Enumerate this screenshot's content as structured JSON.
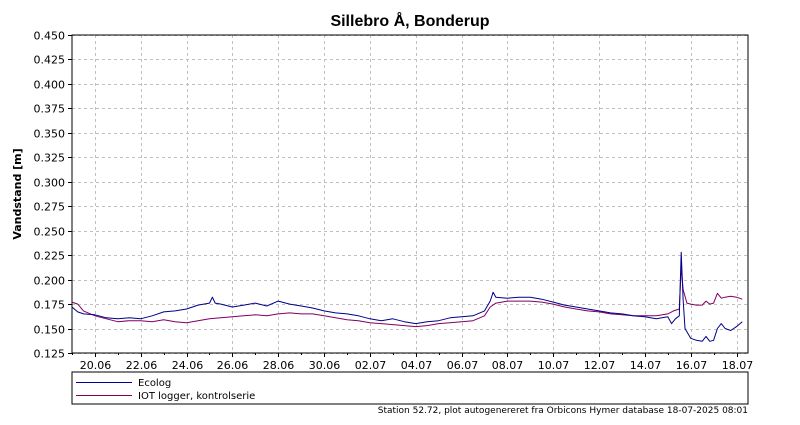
{
  "chart_data": {
    "type": "line",
    "title": "Sillebro Å, Bonderup",
    "ylabel": "Vandstand [m]",
    "xlabel": "",
    "ylim": [
      0.125,
      0.45
    ],
    "yticks": [
      "0.125",
      "0.150",
      "0.175",
      "0.200",
      "0.225",
      "0.250",
      "0.275",
      "0.300",
      "0.325",
      "0.350",
      "0.375",
      "0.400",
      "0.425",
      "0.450"
    ],
    "xlim": [
      "2025-06-19T00:00",
      "2025-07-18T12:00"
    ],
    "xticks": [
      {
        "date": "2025-06-20",
        "label": "20.06"
      },
      {
        "date": "2025-06-22",
        "label": "22.06"
      },
      {
        "date": "2025-06-24",
        "label": "24.06"
      },
      {
        "date": "2025-06-26",
        "label": "26.06"
      },
      {
        "date": "2025-06-28",
        "label": "28.06"
      },
      {
        "date": "2025-06-30",
        "label": "30.06"
      },
      {
        "date": "2025-07-02",
        "label": "02.07"
      },
      {
        "date": "2025-07-04",
        "label": "04.07"
      },
      {
        "date": "2025-07-06",
        "label": "06.07"
      },
      {
        "date": "2025-07-08",
        "label": "08.07"
      },
      {
        "date": "2025-07-10",
        "label": "10.07"
      },
      {
        "date": "2025-07-12",
        "label": "12.07"
      },
      {
        "date": "2025-07-14",
        "label": "14.07"
      },
      {
        "date": "2025-07-16",
        "label": "16.07"
      },
      {
        "date": "2025-07-18",
        "label": "18.07"
      }
    ],
    "grid": true,
    "legend_position": "bottom-left",
    "series": [
      {
        "name": "Ecolog",
        "color": "#00008B",
        "points": [
          [
            "2025-06-19T00:00",
            0.172
          ],
          [
            "2025-06-19T06:00",
            0.167
          ],
          [
            "2025-06-19T12:00",
            0.165
          ],
          [
            "2025-06-20T00:00",
            0.164
          ],
          [
            "2025-06-20T12:00",
            0.161
          ],
          [
            "2025-06-21T00:00",
            0.16
          ],
          [
            "2025-06-21T12:00",
            0.161
          ],
          [
            "2025-06-22T00:00",
            0.16
          ],
          [
            "2025-06-22T12:00",
            0.163
          ],
          [
            "2025-06-23T00:00",
            0.167
          ],
          [
            "2025-06-23T12:00",
            0.168
          ],
          [
            "2025-06-24T00:00",
            0.17
          ],
          [
            "2025-06-24T12:00",
            0.174
          ],
          [
            "2025-06-25T00:00",
            0.176
          ],
          [
            "2025-06-25T03:00",
            0.182
          ],
          [
            "2025-06-25T06:00",
            0.176
          ],
          [
            "2025-06-25T12:00",
            0.175
          ],
          [
            "2025-06-26T00:00",
            0.172
          ],
          [
            "2025-06-26T12:00",
            0.174
          ],
          [
            "2025-06-27T00:00",
            0.176
          ],
          [
            "2025-06-27T12:00",
            0.173
          ],
          [
            "2025-06-28T00:00",
            0.178
          ],
          [
            "2025-06-28T12:00",
            0.175
          ],
          [
            "2025-06-29T00:00",
            0.173
          ],
          [
            "2025-06-29T12:00",
            0.171
          ],
          [
            "2025-06-30T00:00",
            0.168
          ],
          [
            "2025-06-30T12:00",
            0.166
          ],
          [
            "2025-07-01T00:00",
            0.165
          ],
          [
            "2025-07-01T12:00",
            0.163
          ],
          [
            "2025-07-02T00:00",
            0.16
          ],
          [
            "2025-07-02T12:00",
            0.158
          ],
          [
            "2025-07-03T00:00",
            0.16
          ],
          [
            "2025-07-03T12:00",
            0.157
          ],
          [
            "2025-07-04T00:00",
            0.155
          ],
          [
            "2025-07-04T12:00",
            0.157
          ],
          [
            "2025-07-05T00:00",
            0.158
          ],
          [
            "2025-07-05T12:00",
            0.161
          ],
          [
            "2025-07-06T00:00",
            0.162
          ],
          [
            "2025-07-06T12:00",
            0.163
          ],
          [
            "2025-07-07T00:00",
            0.168
          ],
          [
            "2025-07-07T06:00",
            0.178
          ],
          [
            "2025-07-07T09:00",
            0.187
          ],
          [
            "2025-07-07T12:00",
            0.182
          ],
          [
            "2025-07-08T00:00",
            0.181
          ],
          [
            "2025-07-08T12:00",
            0.182
          ],
          [
            "2025-07-09T00:00",
            0.182
          ],
          [
            "2025-07-09T12:00",
            0.18
          ],
          [
            "2025-07-10T00:00",
            0.177
          ],
          [
            "2025-07-10T12:00",
            0.174
          ],
          [
            "2025-07-11T00:00",
            0.172
          ],
          [
            "2025-07-11T12:00",
            0.17
          ],
          [
            "2025-07-12T00:00",
            0.168
          ],
          [
            "2025-07-12T12:00",
            0.166
          ],
          [
            "2025-07-13T00:00",
            0.165
          ],
          [
            "2025-07-13T12:00",
            0.163
          ],
          [
            "2025-07-14T00:00",
            0.162
          ],
          [
            "2025-07-14T12:00",
            0.16
          ],
          [
            "2025-07-15T00:00",
            0.162
          ],
          [
            "2025-07-15T04:00",
            0.155
          ],
          [
            "2025-07-15T08:00",
            0.16
          ],
          [
            "2025-07-15T12:00",
            0.163
          ],
          [
            "2025-07-15T14:00",
            0.228
          ],
          [
            "2025-07-15T16:00",
            0.18
          ],
          [
            "2025-07-15T18:00",
            0.15
          ],
          [
            "2025-07-16T00:00",
            0.14
          ],
          [
            "2025-07-16T06:00",
            0.138
          ],
          [
            "2025-07-16T12:00",
            0.137
          ],
          [
            "2025-07-16T16:00",
            0.142
          ],
          [
            "2025-07-16T20:00",
            0.137
          ],
          [
            "2025-07-17T00:00",
            0.138
          ],
          [
            "2025-07-17T04:00",
            0.15
          ],
          [
            "2025-07-17T08:00",
            0.155
          ],
          [
            "2025-07-17T12:00",
            0.15
          ],
          [
            "2025-07-17T18:00",
            0.148
          ],
          [
            "2025-07-18T00:00",
            0.152
          ],
          [
            "2025-07-18T06:00",
            0.157
          ]
        ]
      },
      {
        "name": "IOT logger, kontrolserie",
        "color": "#800060",
        "points": [
          [
            "2025-06-19T00:00",
            0.177
          ],
          [
            "2025-06-19T06:00",
            0.175
          ],
          [
            "2025-06-19T12:00",
            0.168
          ],
          [
            "2025-06-20T00:00",
            0.163
          ],
          [
            "2025-06-20T12:00",
            0.16
          ],
          [
            "2025-06-21T00:00",
            0.157
          ],
          [
            "2025-06-21T12:00",
            0.158
          ],
          [
            "2025-06-22T00:00",
            0.158
          ],
          [
            "2025-06-22T12:00",
            0.157
          ],
          [
            "2025-06-23T00:00",
            0.159
          ],
          [
            "2025-06-23T12:00",
            0.157
          ],
          [
            "2025-06-24T00:00",
            0.156
          ],
          [
            "2025-06-24T12:00",
            0.158
          ],
          [
            "2025-06-25T00:00",
            0.16
          ],
          [
            "2025-06-25T12:00",
            0.161
          ],
          [
            "2025-06-26T00:00",
            0.162
          ],
          [
            "2025-06-26T12:00",
            0.163
          ],
          [
            "2025-06-27T00:00",
            0.164
          ],
          [
            "2025-06-27T12:00",
            0.163
          ],
          [
            "2025-06-28T00:00",
            0.165
          ],
          [
            "2025-06-28T12:00",
            0.166
          ],
          [
            "2025-06-29T00:00",
            0.165
          ],
          [
            "2025-06-29T12:00",
            0.165
          ],
          [
            "2025-06-30T00:00",
            0.163
          ],
          [
            "2025-06-30T12:00",
            0.161
          ],
          [
            "2025-07-01T00:00",
            0.159
          ],
          [
            "2025-07-01T12:00",
            0.158
          ],
          [
            "2025-07-02T00:00",
            0.156
          ],
          [
            "2025-07-02T12:00",
            0.155
          ],
          [
            "2025-07-03T00:00",
            0.154
          ],
          [
            "2025-07-03T12:00",
            0.153
          ],
          [
            "2025-07-04T00:00",
            0.152
          ],
          [
            "2025-07-04T12:00",
            0.153
          ],
          [
            "2025-07-05T00:00",
            0.155
          ],
          [
            "2025-07-05T12:00",
            0.156
          ],
          [
            "2025-07-06T00:00",
            0.157
          ],
          [
            "2025-07-06T12:00",
            0.158
          ],
          [
            "2025-07-07T00:00",
            0.163
          ],
          [
            "2025-07-07T06:00",
            0.172
          ],
          [
            "2025-07-07T12:00",
            0.176
          ],
          [
            "2025-07-08T00:00",
            0.178
          ],
          [
            "2025-07-08T12:00",
            0.178
          ],
          [
            "2025-07-09T00:00",
            0.178
          ],
          [
            "2025-07-09T12:00",
            0.177
          ],
          [
            "2025-07-10T00:00",
            0.175
          ],
          [
            "2025-07-10T12:00",
            0.172
          ],
          [
            "2025-07-11T00:00",
            0.17
          ],
          [
            "2025-07-11T12:00",
            0.168
          ],
          [
            "2025-07-12T00:00",
            0.167
          ],
          [
            "2025-07-12T12:00",
            0.165
          ],
          [
            "2025-07-13T00:00",
            0.164
          ],
          [
            "2025-07-13T12:00",
            0.163
          ],
          [
            "2025-07-14T00:00",
            0.163
          ],
          [
            "2025-07-14T12:00",
            0.163
          ],
          [
            "2025-07-15T00:00",
            0.165
          ],
          [
            "2025-07-15T06:00",
            0.168
          ],
          [
            "2025-07-15T12:00",
            0.17
          ],
          [
            "2025-07-15T14:00",
            0.213
          ],
          [
            "2025-07-15T16:00",
            0.19
          ],
          [
            "2025-07-15T20:00",
            0.176
          ],
          [
            "2025-07-16T00:00",
            0.175
          ],
          [
            "2025-07-16T06:00",
            0.174
          ],
          [
            "2025-07-16T12:00",
            0.174
          ],
          [
            "2025-07-16T16:00",
            0.178
          ],
          [
            "2025-07-16T20:00",
            0.175
          ],
          [
            "2025-07-17T00:00",
            0.176
          ],
          [
            "2025-07-17T04:00",
            0.186
          ],
          [
            "2025-07-17T08:00",
            0.181
          ],
          [
            "2025-07-17T12:00",
            0.182
          ],
          [
            "2025-07-17T18:00",
            0.183
          ],
          [
            "2025-07-18T00:00",
            0.182
          ],
          [
            "2025-07-18T06:00",
            0.18
          ]
        ]
      }
    ]
  },
  "footer": "Station 52.72, plot autogenereret fra Orbicons Hymer database 18-07-2025 08:01"
}
